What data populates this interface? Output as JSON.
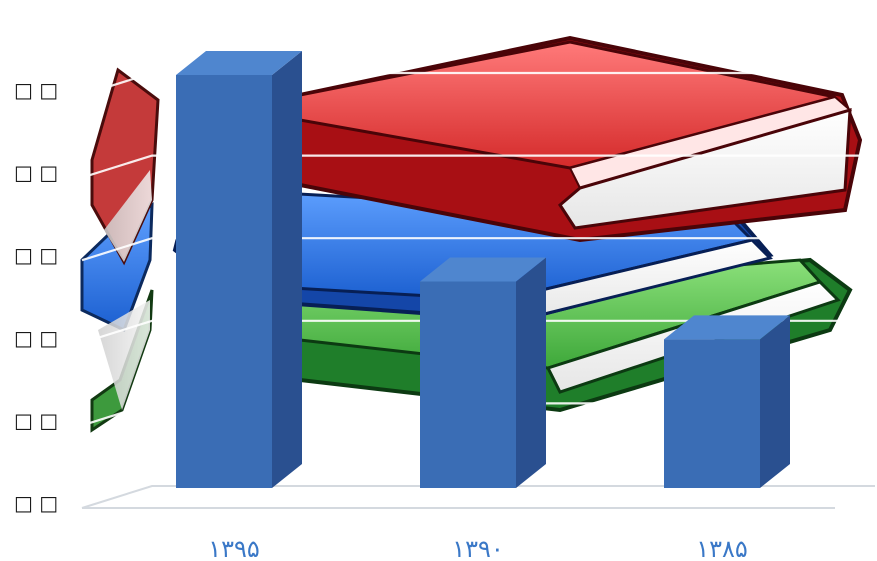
{
  "chart_data": {
    "type": "bar",
    "categories": [
      "۱۳۹۵",
      "۱۳۹۰",
      "۱۳۸۵"
    ],
    "values": [
      5.0,
      2.5,
      1.8
    ],
    "ylim": [
      0,
      5
    ],
    "y_tick_labels": [
      "□ □",
      "□ □",
      "□ □",
      "□ □",
      "□ □",
      "□ □"
    ],
    "grid": true,
    "bar_style": "3d",
    "colors": {
      "bar_front": "#3a6db5",
      "bar_side": "#2a5090",
      "bar_top": "#4f86cf",
      "x_tick_text": "#3a78c7",
      "gridline": "#dfe6ee"
    },
    "background_art": "stack-of-books-icon"
  }
}
